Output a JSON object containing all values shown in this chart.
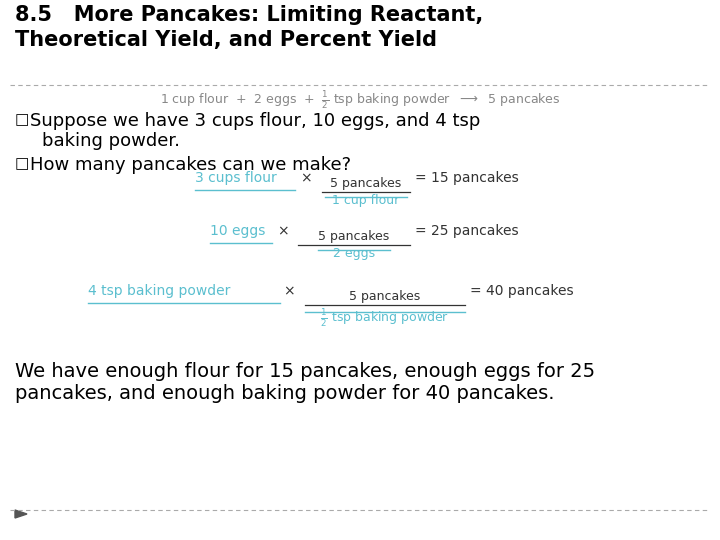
{
  "title_line1": "8.5   More Pancakes: Limiting Reactant,",
  "title_line2": "Theoretical Yield, and Percent Yield",
  "title_fontsize": 15,
  "title_color": "#000000",
  "bg_color": "#ffffff",
  "border_color": "#aaaaaa",
  "bullet_char": "□",
  "text_fontsize": 13,
  "eq_fontsize": 10,
  "conclusion_line1": "We have enough flour for 15 pancakes, enough eggs for 25",
  "conclusion_line2": "pancakes, and enough baking powder for 40 pancakes.",
  "equation_color": "#888888",
  "cancel_color": "#5bbfcf",
  "dark_color": "#333333"
}
